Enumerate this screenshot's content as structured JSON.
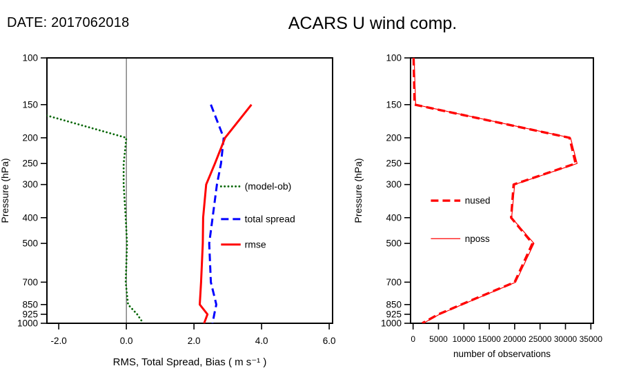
{
  "header": {
    "date_label": "DATE: 2017062018",
    "title": "ACARS U wind comp."
  },
  "chart_data": [
    {
      "id": "bias-spread-rmse",
      "type": "line",
      "xlabel": "RMS, Total Spread, Bias ( m s⁻¹ )",
      "ylabel": "Pressure (hPa)",
      "x_axis": {
        "lim": [
          -2.35,
          6.1
        ],
        "ticks": [
          -2.0,
          0.0,
          2.0,
          4.0,
          6.0
        ],
        "tick_labels": [
          "-2.0",
          "0.0",
          "2.0",
          "4.0",
          "6.0"
        ]
      },
      "y_axis": {
        "scale": "log",
        "lim": [
          100,
          1000
        ],
        "ticks": [
          100,
          150,
          200,
          250,
          300,
          400,
          500,
          700,
          850,
          925,
          1000
        ],
        "tick_labels": [
          "100",
          "150",
          "200",
          "250",
          "300",
          "400",
          "500",
          "700",
          "850",
          "925",
          "1000"
        ]
      },
      "zero_line_x": 0.0,
      "pressure_levels": [
        150,
        200,
        250,
        300,
        400,
        500,
        700,
        850,
        925,
        1000
      ],
      "series": [
        {
          "name": "(model-ob)",
          "color": "#006400",
          "style": "dotted",
          "width": 2.8,
          "values": [
            -3.5,
            0.0,
            -0.08,
            -0.08,
            -0.02,
            0.02,
            -0.02,
            0.05,
            0.32,
            0.5
          ]
        },
        {
          "name": "total spread",
          "color": "#0000ff",
          "style": "dashed",
          "width": 3,
          "values": [
            2.5,
            2.88,
            2.8,
            2.68,
            2.55,
            2.45,
            2.5,
            2.66,
            2.6,
            2.55
          ]
        },
        {
          "name": "rmse",
          "color": "#ff0000",
          "style": "solid",
          "width": 3,
          "values": [
            3.7,
            2.92,
            2.62,
            2.36,
            2.27,
            2.26,
            2.21,
            2.17,
            2.4,
            2.3
          ]
        }
      ],
      "legend": {
        "line_x": [
          2.8,
          3.38
        ],
        "text_x": 3.5,
        "rows": [
          {
            "label": "(model-ob)",
            "pressure": 305
          },
          {
            "label": "total spread",
            "pressure": 405
          },
          {
            "label": "rmse",
            "pressure": 505
          }
        ]
      }
    },
    {
      "id": "observation-counts",
      "type": "line",
      "xlabel": "number of observations",
      "ylabel": "Pressure (hPa)",
      "x_axis": {
        "lim": [
          -500,
          35500
        ],
        "ticks": [
          0,
          5000,
          10000,
          15000,
          20000,
          25000,
          30000,
          35000
        ],
        "tick_labels": [
          "0",
          "5000",
          "10000",
          "15000",
          "20000",
          "25000",
          "30000",
          "35000"
        ]
      },
      "y_axis": {
        "scale": "log",
        "lim": [
          100,
          1000
        ],
        "ticks": [
          100,
          150,
          200,
          250,
          300,
          400,
          500,
          700,
          850,
          925,
          1000
        ],
        "tick_labels": [
          "100",
          "150",
          "200",
          "250",
          "300",
          "400",
          "500",
          "700",
          "850",
          "925",
          "1000"
        ]
      },
      "pressure_levels": [
        100,
        150,
        200,
        250,
        300,
        400,
        500,
        700,
        850,
        925,
        1000
      ],
      "series": [
        {
          "name": "nused",
          "color": "#ff0000",
          "style": "dashed",
          "width": 3.4,
          "values": [
            100,
            300,
            30800,
            32000,
            19800,
            19300,
            23500,
            20000,
            9500,
            5000,
            1800
          ]
        },
        {
          "name": "nposs",
          "color": "#ff0000",
          "style": "solid",
          "width": 1.2,
          "values": [
            200,
            500,
            31000,
            32300,
            20000,
            19400,
            23800,
            20200,
            9700,
            5200,
            2000
          ]
        }
      ],
      "legend": {
        "line_x": [
          3500,
          9300
        ],
        "text_x": 10200,
        "rows": [
          {
            "label": "nused",
            "pressure": 345
          },
          {
            "label": "nposs",
            "pressure": 480
          }
        ]
      }
    }
  ]
}
